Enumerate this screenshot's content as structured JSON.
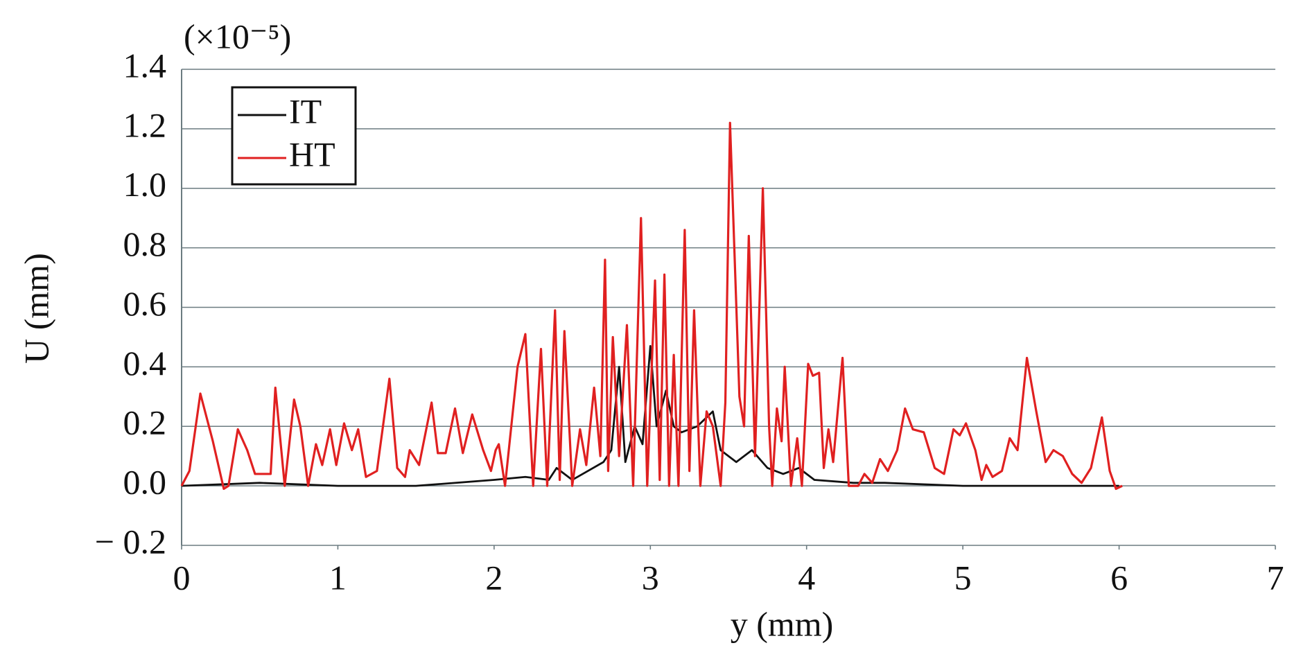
{
  "chart_data": {
    "type": "line",
    "annotation": "(×10⁻⁵)",
    "xlabel": "y (mm)",
    "ylabel": "U (mm)",
    "xlim": [
      0,
      7
    ],
    "xticks": [
      0,
      1,
      2,
      3,
      4,
      5,
      6,
      7
    ],
    "ylim": [
      -0.2,
      1.4
    ],
    "yticks": [
      {
        "value": -0.2,
        "label": "− 0.2"
      },
      {
        "value": 0,
        "label": "0.0"
      },
      0.2,
      0.4,
      0.6,
      0.8,
      {
        "value": 1,
        "label": "1.0"
      },
      1.2,
      1.4
    ],
    "grid": true,
    "legend": "upper left",
    "series": [
      {
        "name": "IT",
        "color": "#111111",
        "x": [
          0,
          0.5,
          1.0,
          1.5,
          2.0,
          2.2,
          2.35,
          2.4,
          2.5,
          2.6,
          2.7,
          2.75,
          2.8,
          2.84,
          2.9,
          2.95,
          3.0,
          3.04,
          3.1,
          3.15,
          3.2,
          3.3,
          3.4,
          3.45,
          3.55,
          3.65,
          3.75,
          3.85,
          3.95,
          4.05,
          4.3,
          4.5,
          5.0,
          5.5,
          6.0
        ],
        "values": [
          0,
          0.01,
          0,
          0,
          0.02,
          0.03,
          0.02,
          0.06,
          0.02,
          0.05,
          0.08,
          0.12,
          0.4,
          0.08,
          0.2,
          0.14,
          0.47,
          0.2,
          0.32,
          0.2,
          0.18,
          0.2,
          0.25,
          0.12,
          0.08,
          0.12,
          0.06,
          0.04,
          0.06,
          0.02,
          0.01,
          0.01,
          0,
          0,
          0
        ]
      },
      {
        "name": "HT",
        "color": "#e02020",
        "x": [
          0,
          0.05,
          0.12,
          0.2,
          0.27,
          0.3,
          0.36,
          0.42,
          0.47,
          0.57,
          0.6,
          0.66,
          0.72,
          0.76,
          0.81,
          0.86,
          0.9,
          0.95,
          0.99,
          1.04,
          1.09,
          1.13,
          1.18,
          1.25,
          1.33,
          1.38,
          1.43,
          1.46,
          1.52,
          1.6,
          1.64,
          1.69,
          1.75,
          1.8,
          1.86,
          1.93,
          1.98,
          2.01,
          2.03,
          2.07,
          2.15,
          2.2,
          2.25,
          2.3,
          2.34,
          2.39,
          2.42,
          2.45,
          2.5,
          2.55,
          2.59,
          2.64,
          2.68,
          2.71,
          2.73,
          2.76,
          2.8,
          2.85,
          2.89,
          2.94,
          2.98,
          3.03,
          3.06,
          3.09,
          3.12,
          3.15,
          3.18,
          3.22,
          3.25,
          3.28,
          3.32,
          3.36,
          3.4,
          3.45,
          3.48,
          3.51,
          3.57,
          3.6,
          3.63,
          3.67,
          3.72,
          3.76,
          3.78,
          3.81,
          3.84,
          3.86,
          3.9,
          3.94,
          3.97,
          4.01,
          4.04,
          4.08,
          4.11,
          4.14,
          4.17,
          4.23,
          4.27,
          4.33,
          4.37,
          4.42,
          4.47,
          4.52,
          4.58,
          4.63,
          4.68,
          4.75,
          4.82,
          4.88,
          4.94,
          4.98,
          5.02,
          5.08,
          5.12,
          5.15,
          5.19,
          5.25,
          5.3,
          5.35,
          5.41,
          5.47,
          5.53,
          5.58,
          5.64,
          5.7,
          5.76,
          5.82,
          5.89,
          5.94,
          5.98,
          6.02
        ],
        "values": [
          0,
          0.05,
          0.31,
          0.15,
          -0.01,
          0,
          0.19,
          0.12,
          0.04,
          0.04,
          0.33,
          0,
          0.29,
          0.2,
          0,
          0.14,
          0.07,
          0.19,
          0.07,
          0.21,
          0.12,
          0.19,
          0.03,
          0.05,
          0.36,
          0.06,
          0.03,
          0.12,
          0.07,
          0.28,
          0.11,
          0.11,
          0.26,
          0.11,
          0.24,
          0.12,
          0.05,
          0.12,
          0.14,
          0,
          0.4,
          0.51,
          0,
          0.46,
          0,
          0.59,
          0.02,
          0.52,
          0,
          0.19,
          0.07,
          0.33,
          0.1,
          0.76,
          0.05,
          0.5,
          0.1,
          0.54,
          0,
          0.9,
          0,
          0.69,
          0.02,
          0.71,
          0,
          0.44,
          0,
          0.86,
          0.05,
          0.59,
          0,
          0.25,
          0.2,
          0,
          0.28,
          1.22,
          0.3,
          0.2,
          0.84,
          0.1,
          1.0,
          0.2,
          0,
          0.26,
          0.15,
          0.4,
          0,
          0.16,
          0,
          0.41,
          0.37,
          0.38,
          0.06,
          0.19,
          0.08,
          0.43,
          0,
          0,
          0.04,
          0.01,
          0.09,
          0.05,
          0.12,
          0.26,
          0.19,
          0.18,
          0.06,
          0.04,
          0.19,
          0.17,
          0.21,
          0.12,
          0.02,
          0.07,
          0.03,
          0.05,
          0.16,
          0.12,
          0.43,
          0.25,
          0.08,
          0.12,
          0.1,
          0.04,
          0.01,
          0.06,
          0.23,
          0.05,
          -0.01,
          0
        ]
      }
    ]
  }
}
